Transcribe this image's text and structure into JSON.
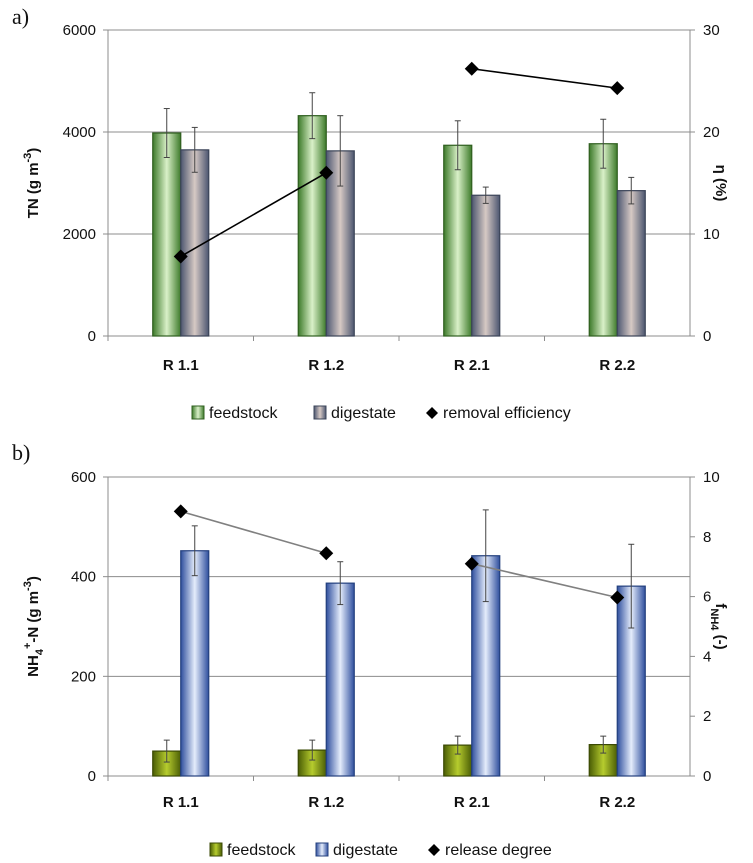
{
  "chart_data": [
    {
      "panel": "a)",
      "type": "bar",
      "categories": [
        "R 1.1",
        "R 1.2",
        "R 2.1",
        "R 2.2"
      ],
      "ylabel_parts": {
        "main": "TN (g m",
        "sup": "-3",
        "end": ")"
      },
      "y2label_parts": {
        "main": "η (%)",
        "sub": ""
      },
      "ylim": [
        0,
        6000
      ],
      "yticks": [
        "0",
        "2000",
        "4000",
        "6000"
      ],
      "y2lim": [
        0,
        30
      ],
      "y2ticks": [
        "0",
        "10",
        "20",
        "30"
      ],
      "grid": true,
      "legend_position": "bottom",
      "series": [
        {
          "name": "feedstock",
          "axis": "left",
          "kind": "bar",
          "color": "#7fbf5a",
          "values": [
            3980,
            4320,
            3740,
            3770
          ],
          "err": [
            480,
            450,
            480,
            480
          ]
        },
        {
          "name": "digestate",
          "axis": "left",
          "kind": "bar",
          "color": "#9aa3b8",
          "values": [
            3650,
            3630,
            2760,
            2850
          ],
          "err": [
            440,
            690,
            160,
            260
          ]
        },
        {
          "name": "removal efficiency",
          "axis": "right",
          "kind": "line",
          "color": "#000000",
          "values": [
            7.8,
            16.0,
            26.2,
            24.3
          ],
          "segments": [
            [
              0,
              1
            ],
            [
              2,
              3
            ]
          ]
        }
      ]
    },
    {
      "panel": "b)",
      "type": "bar",
      "categories": [
        "R 1.1",
        "R 1.2",
        "R 2.1",
        "R 2.2"
      ],
      "ylabel_parts": {
        "pre": "NH",
        "sub": "4",
        "sup": "+",
        "main": "-N (g m",
        "sup2": "-3",
        "end": ")"
      },
      "y2label_parts": {
        "main": "f",
        "sub": "NH4",
        "end": " (-)"
      },
      "ylim": [
        0,
        600
      ],
      "yticks": [
        "0",
        "200",
        "400",
        "600"
      ],
      "y2lim": [
        0,
        10
      ],
      "y2ticks": [
        "0",
        "2",
        "4",
        "6",
        "8",
        "10"
      ],
      "grid": true,
      "legend_position": "bottom",
      "series": [
        {
          "name": "feedstock",
          "axis": "left",
          "kind": "bar",
          "color": "#8aa020",
          "values": [
            50,
            52,
            62,
            63
          ],
          "err": [
            22,
            20,
            18,
            17
          ]
        },
        {
          "name": "digestate",
          "axis": "left",
          "kind": "bar",
          "color": "#5b7fd0",
          "values": [
            452,
            387,
            442,
            381
          ],
          "err": [
            50,
            43,
            92,
            84
          ]
        },
        {
          "name": "release degree",
          "axis": "right",
          "kind": "line",
          "color": "#000000",
          "line_color": "#808080",
          "values": [
            8.85,
            7.45,
            7.1,
            5.97
          ],
          "segments": [
            [
              0,
              1
            ],
            [
              2,
              3
            ]
          ]
        }
      ]
    }
  ]
}
